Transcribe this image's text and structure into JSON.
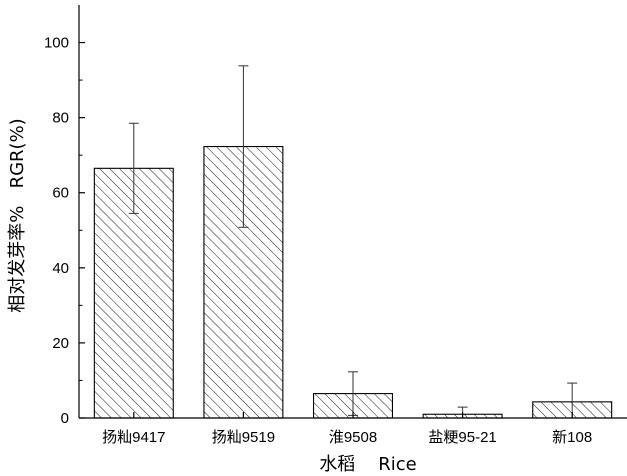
{
  "chart_data": {
    "type": "bar",
    "title": "",
    "xlabel": "水稻    Rice",
    "ylabel": "相对发芽率%   RGR(%)",
    "categories": [
      "扬籼9417",
      "扬籼9519",
      "淮9508",
      "盐粳95-21",
      "新108"
    ],
    "series": [
      {
        "values": [
          66.5,
          72.3,
          6.5,
          1.0,
          4.3
        ],
        "error": [
          12,
          21.5,
          5.8,
          1.9,
          5.0
        ]
      }
    ],
    "ylim": [
      0,
      110
    ],
    "yticks": [
      0,
      20,
      40,
      60,
      80,
      100
    ],
    "grid": false,
    "legend": "none",
    "fill": "diagonal-hatch",
    "colors": {
      "bar_fill": "#ffffff",
      "bar_stroke": "#000000",
      "axis": "#000000"
    }
  }
}
